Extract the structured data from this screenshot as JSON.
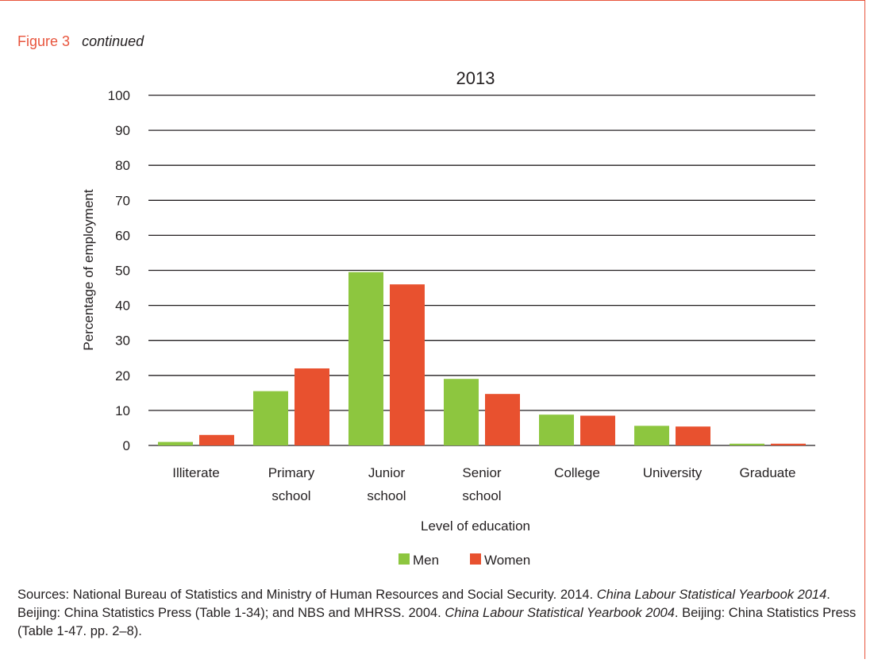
{
  "figure": {
    "label": "Figure 3",
    "note": "continued"
  },
  "chart_data": {
    "type": "bar",
    "title": "2013",
    "xlabel": "Level of education",
    "ylabel": "Percentage of employment",
    "ylim": [
      0,
      100
    ],
    "yticks": [
      0,
      10,
      20,
      30,
      40,
      50,
      60,
      70,
      80,
      90,
      100
    ],
    "grid": true,
    "legend_position": "bottom",
    "categories": [
      [
        "Illiterate"
      ],
      [
        "Primary",
        "school"
      ],
      [
        "Junior",
        "school"
      ],
      [
        "Senior",
        "school"
      ],
      [
        "College"
      ],
      [
        "University"
      ],
      [
        "Graduate"
      ]
    ],
    "series": [
      {
        "name": "Men",
        "color": "#8dc63f",
        "values": [
          1.0,
          15.5,
          49.5,
          19.0,
          8.8,
          5.6,
          0.5
        ]
      },
      {
        "name": "Women",
        "color": "#e8512f",
        "values": [
          3.0,
          22.0,
          46.0,
          14.7,
          8.5,
          5.4,
          0.5
        ]
      }
    ]
  },
  "sources": {
    "prefix": "Sources: National Bureau of Statistics and Ministry of Human Resources and Social Security. 2014. ",
    "title1": "China Labour Statistical Yearbook 2014",
    "mid": ". Beijing: China Statistics Press (Table 1-34); and NBS and MHRSS. 2004. ",
    "title2": "China Labour Statistical Yearbook 2004",
    "suffix": ". Beijing: China Statistics Press (Table 1-47. pp. 2–8)."
  }
}
